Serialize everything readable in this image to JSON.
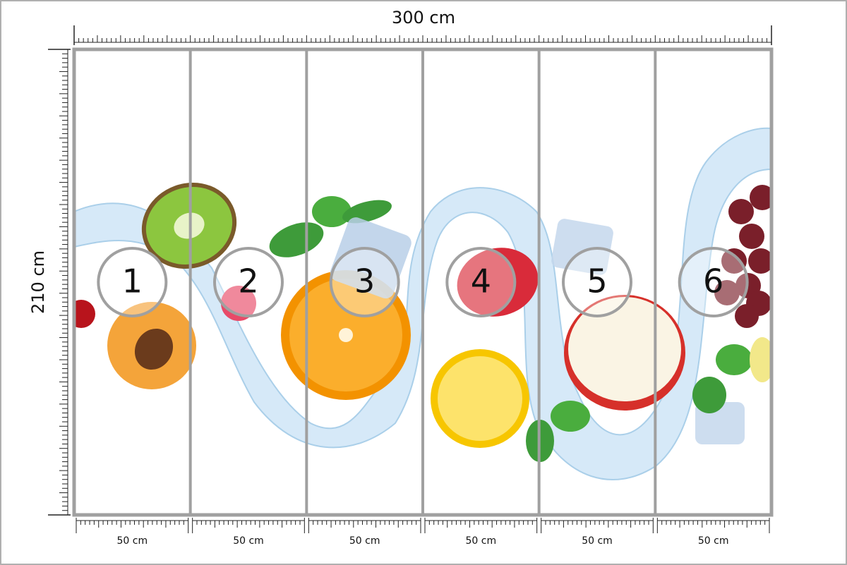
{
  "width_label": "300 cm",
  "height_label": "210 cm",
  "panels": [
    {
      "number": "1",
      "width": "50 cm"
    },
    {
      "number": "2",
      "width": "50 cm"
    },
    {
      "number": "3",
      "width": "50 cm"
    },
    {
      "number": "4",
      "width": "50 cm"
    },
    {
      "number": "5",
      "width": "50 cm"
    },
    {
      "number": "6",
      "width": "50 cm"
    }
  ]
}
